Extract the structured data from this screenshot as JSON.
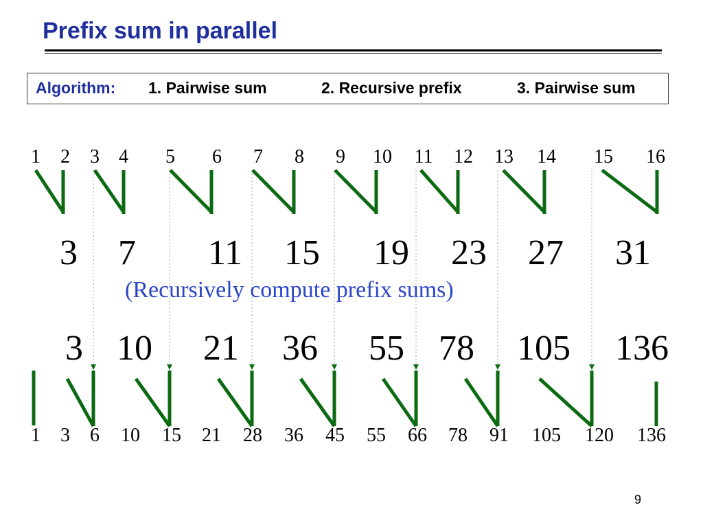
{
  "title": "Prefix sum in parallel",
  "algorithm": {
    "label": "Algorithm:",
    "steps": [
      "1. Pairwise sum",
      "2. Recursive prefix",
      "3. Pairwise sum"
    ]
  },
  "input_values": [
    "1",
    "2",
    "3",
    "4",
    "5",
    "6",
    "7",
    "8",
    "9",
    "10",
    "11",
    "12",
    "13",
    "14",
    "15",
    "16"
  ],
  "pair_sums": [
    "3",
    "7",
    "11",
    "15",
    "19",
    "23",
    "27",
    "31"
  ],
  "recursive_note": "(Recursively compute prefix sums)",
  "recursive_prefix": [
    "3",
    "10",
    "21",
    "36",
    "55",
    "78",
    "105",
    "136"
  ],
  "output_values": [
    "1",
    "3",
    "6",
    "10",
    "15",
    "21",
    "28",
    "36",
    "45",
    "55",
    "66",
    "78",
    "91",
    "105",
    "120",
    "136"
  ],
  "page_number": "9",
  "colors": {
    "title": "#1f2f9e",
    "arrow": "#0b6a12",
    "note": "#2b45c9"
  }
}
